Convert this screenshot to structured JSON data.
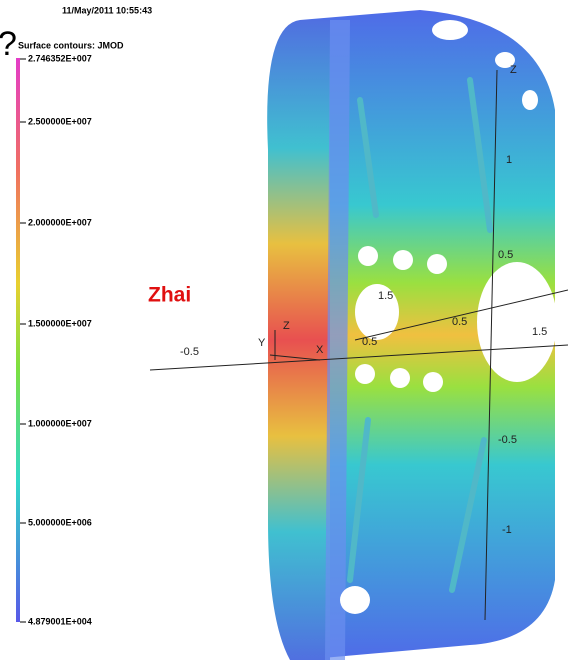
{
  "header": {
    "question_mark": "?",
    "timestamp": "11/May/2011 10:55:43"
  },
  "legend": {
    "title": "Surface contours: JMOD",
    "labels": [
      "2.746352E+007",
      "2.500000E+007",
      "2.000000E+007",
      "1.500000E+007",
      "1.000000E+007",
      "5.000000E+006",
      "4.879001E+004"
    ]
  },
  "annotation": "Zhai",
  "axes": {
    "labels": [
      {
        "text": "Z"
      },
      {
        "text": "1"
      },
      {
        "text": "0.5"
      },
      {
        "text": "1.5"
      },
      {
        "text": "0.5"
      },
      {
        "text": "0.5"
      },
      {
        "text": "1.5"
      },
      {
        "text": "-0.5"
      },
      {
        "text": "Y"
      },
      {
        "text": "Z"
      },
      {
        "text": "X"
      },
      {
        "text": "-0.5"
      },
      {
        "text": "-1"
      }
    ]
  }
}
